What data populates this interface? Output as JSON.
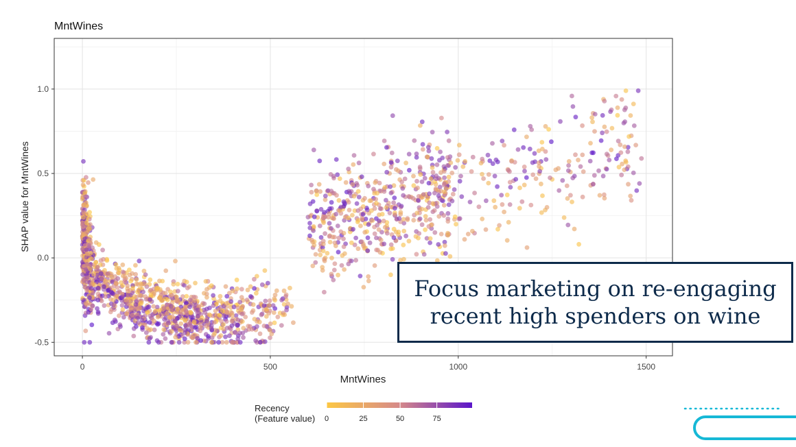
{
  "chart_data": {
    "type": "scatter",
    "title": "MntWines",
    "xlabel": "MntWines",
    "ylabel": "SHAP value for MntWines",
    "xlim": [
      -75,
      1570
    ],
    "ylim": [
      -0.58,
      1.3
    ],
    "xticks": [
      0,
      500,
      1000,
      1500
    ],
    "xtick_labels": [
      "0",
      "500",
      "1000",
      "1500"
    ],
    "yticks": [
      -0.5,
      0.0,
      0.5,
      1.0
    ],
    "ytick_labels": [
      "-0.5",
      "0.0",
      "0.5",
      "1.0"
    ],
    "grid": true,
    "legend": {
      "title_line1": "Recency",
      "title_line2": "(Feature value)",
      "ticks": [
        0,
        25,
        50,
        75
      ],
      "tick_labels": [
        "0",
        "25",
        "50",
        "75"
      ],
      "range": [
        0,
        99
      ],
      "placement": "bottom"
    },
    "color_scale": {
      "low": "#fcc744",
      "mid": "#d68a8a",
      "high": "#5a15c9"
    },
    "color_variable": "Recency",
    "point_count_estimate": 2000
  },
  "callout": {
    "line1": "Focus marketing on re-engaging",
    "line2": "recent high spenders on wine"
  },
  "colors": {
    "callout_border": "#0d2a4a",
    "callout_text": "#0d2a4a",
    "decoration": "#16b8d6"
  }
}
